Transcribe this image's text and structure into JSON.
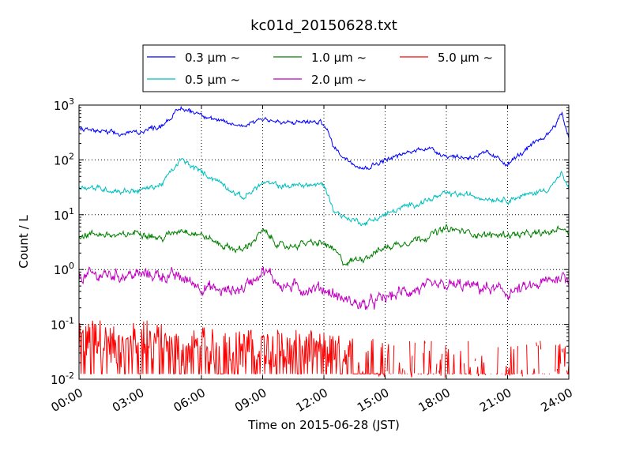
{
  "chart_data": {
    "type": "line",
    "title": "kc01d_20150628.txt",
    "xlabel": "Time on 2015-06-28 (JST)",
    "ylabel": "Count / L",
    "yscale": "log",
    "ylim": [
      0.01,
      1000
    ],
    "xlim": [
      "00:00",
      "24:00"
    ],
    "x_ticks": [
      "00:00",
      "03:00",
      "06:00",
      "09:00",
      "12:00",
      "15:00",
      "18:00",
      "21:00",
      "24:00"
    ],
    "y_ticks": [
      {
        "value": 1000,
        "base": "10",
        "exp": "3"
      },
      {
        "value": 100,
        "base": "10",
        "exp": "2"
      },
      {
        "value": 10,
        "base": "10",
        "exp": "1"
      },
      {
        "value": 1,
        "base": "10",
        "exp": "0"
      },
      {
        "value": 0.1,
        "base": "10",
        "exp": "-1"
      },
      {
        "value": 0.01,
        "base": "10",
        "exp": "-2"
      }
    ],
    "grid": true,
    "legend_position": "top",
    "legend": [
      {
        "label": "0.3 μm ~",
        "color": "#0000ff"
      },
      {
        "label": "1.0 μm ~",
        "color": "#008000"
      },
      {
        "label": "5.0 μm ~",
        "color": "#ff0000"
      },
      {
        "label": "0.5 μm ~",
        "color": "#00bfbf"
      },
      {
        "label": "2.0 μm ~",
        "color": "#bf00bf"
      }
    ],
    "series": [
      {
        "name": "0.3 μm ~",
        "color": "#0000ff",
        "x": [
          "00:00",
          "01:00",
          "02:00",
          "03:00",
          "04:00",
          "05:00",
          "06:00",
          "07:00",
          "08:00",
          "09:00",
          "10:00",
          "11:00",
          "12:00",
          "12:30",
          "13:00",
          "14:00",
          "15:00",
          "16:00",
          "17:00",
          "18:00",
          "19:00",
          "20:00",
          "21:00",
          "22:00",
          "23:00",
          "23:40",
          "24:00"
        ],
        "values": [
          380,
          330,
          290,
          330,
          420,
          860,
          700,
          480,
          420,
          580,
          460,
          500,
          470,
          170,
          110,
          70,
          100,
          130,
          170,
          120,
          110,
          130,
          85,
          160,
          300,
          700,
          250
        ]
      },
      {
        "name": "0.5 μm ~",
        "color": "#00bfbf",
        "x": [
          "00:00",
          "01:00",
          "02:00",
          "03:00",
          "04:00",
          "05:00",
          "06:00",
          "07:00",
          "08:00",
          "09:00",
          "10:00",
          "11:00",
          "12:00",
          "12:30",
          "13:00",
          "14:00",
          "15:00",
          "16:00",
          "17:00",
          "18:00",
          "19:00",
          "20:00",
          "21:00",
          "22:00",
          "23:00",
          "23:40",
          "24:00"
        ],
        "values": [
          33,
          30,
          27,
          28,
          35,
          100,
          60,
          38,
          20,
          38,
          33,
          35,
          35,
          12,
          9,
          7,
          10,
          14,
          18,
          24,
          23,
          20,
          19,
          23,
          30,
          55,
          28
        ]
      },
      {
        "name": "1.0 μm ~",
        "color": "#008000",
        "x": [
          "00:00",
          "01:00",
          "02:00",
          "03:00",
          "04:00",
          "05:00",
          "06:00",
          "07:00",
          "08:00",
          "09:00",
          "10:00",
          "11:00",
          "12:00",
          "12:30",
          "13:00",
          "14:00",
          "15:00",
          "16:00",
          "17:00",
          "18:00",
          "19:00",
          "20:00",
          "21:00",
          "22:00",
          "23:00",
          "23:40",
          "24:00"
        ],
        "values": [
          4.2,
          4.5,
          4.0,
          5.0,
          3.6,
          5.5,
          4.3,
          2.8,
          2.2,
          5.0,
          2.5,
          3.0,
          3.0,
          2.2,
          1.3,
          1.7,
          2.5,
          3.2,
          4.0,
          5.5,
          4.8,
          4.2,
          4.4,
          4.3,
          4.6,
          6.0,
          4.5
        ]
      },
      {
        "name": "2.0 μm ~",
        "color": "#bf00bf",
        "x": [
          "00:00",
          "01:00",
          "02:00",
          "03:00",
          "04:00",
          "05:00",
          "06:00",
          "07:00",
          "08:00",
          "09:00",
          "10:00",
          "11:00",
          "12:00",
          "12:30",
          "13:00",
          "14:00",
          "15:00",
          "16:00",
          "17:00",
          "18:00",
          "19:00",
          "20:00",
          "21:00",
          "22:00",
          "23:00",
          "23:40",
          "24:00"
        ],
        "values": [
          0.75,
          0.8,
          0.8,
          0.8,
          0.8,
          0.7,
          0.5,
          0.4,
          0.45,
          1.0,
          0.5,
          0.45,
          0.45,
          0.35,
          0.28,
          0.22,
          0.3,
          0.4,
          0.45,
          0.5,
          0.5,
          0.45,
          0.38,
          0.45,
          0.6,
          0.8,
          0.6
        ]
      },
      {
        "name": "5.0 μm ~",
        "color": "#ff0000",
        "x": [
          "00:00",
          "01:00",
          "02:00",
          "03:00",
          "04:00",
          "05:00",
          "06:00",
          "07:00",
          "08:00",
          "09:00",
          "10:00",
          "11:00",
          "12:00",
          "12:30",
          "13:00",
          "14:00",
          "15:00",
          "16:00",
          "17:00",
          "18:00",
          "19:00",
          "20:00",
          "21:00",
          "22:00",
          "23:00",
          "23:40",
          "24:00"
        ],
        "values": [
          0.04,
          0.05,
          0.03,
          0.05,
          0.04,
          0.03,
          0.035,
          0.03,
          0.03,
          0.035,
          0.03,
          0.03,
          0.03,
          0.025,
          0.025,
          0.025,
          0.02,
          0.02,
          0.02,
          0.02,
          0.02,
          0.02,
          0.02,
          0.02,
          0.02,
          0.02,
          0.02
        ]
      }
    ]
  }
}
